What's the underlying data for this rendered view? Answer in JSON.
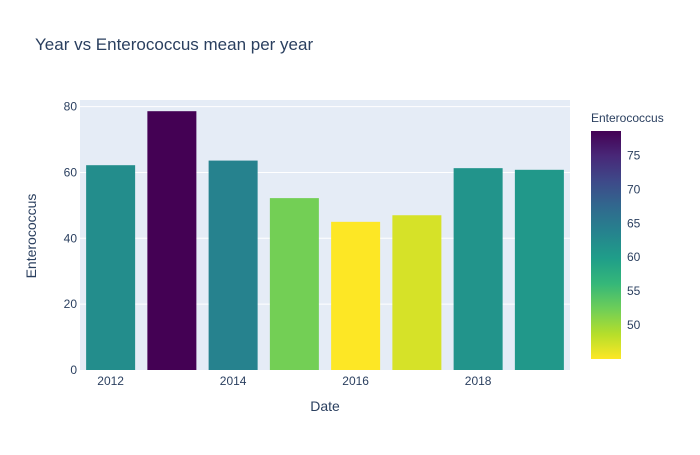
{
  "chart_data": {
    "type": "bar",
    "title": "Year vs Enterococcus mean per year",
    "xlabel": "Date",
    "ylabel": "Enterococcus",
    "x": [
      2012,
      2013,
      2014,
      2015,
      2016,
      2017,
      2018,
      2019
    ],
    "values": [
      62.2,
      78.6,
      63.6,
      52.2,
      45.0,
      47.0,
      61.3,
      60.8
    ],
    "x_ticks": [
      2012,
      2014,
      2016,
      2018
    ],
    "y_ticks": [
      0,
      20,
      40,
      60,
      80
    ],
    "ylim": [
      0,
      82
    ],
    "xlim": [
      2011.5,
      2019.5
    ],
    "grid": true,
    "colorbar": {
      "title": "Enterococcus",
      "ticks": [
        50,
        55,
        60,
        65,
        70,
        75
      ],
      "range": [
        45.0,
        78.6
      ],
      "colorscale": "viridis-reversed"
    },
    "colors": {
      "plot_background": "#e5ecf6",
      "gridline": "#ffffff",
      "text": "#2a3f5f"
    }
  }
}
